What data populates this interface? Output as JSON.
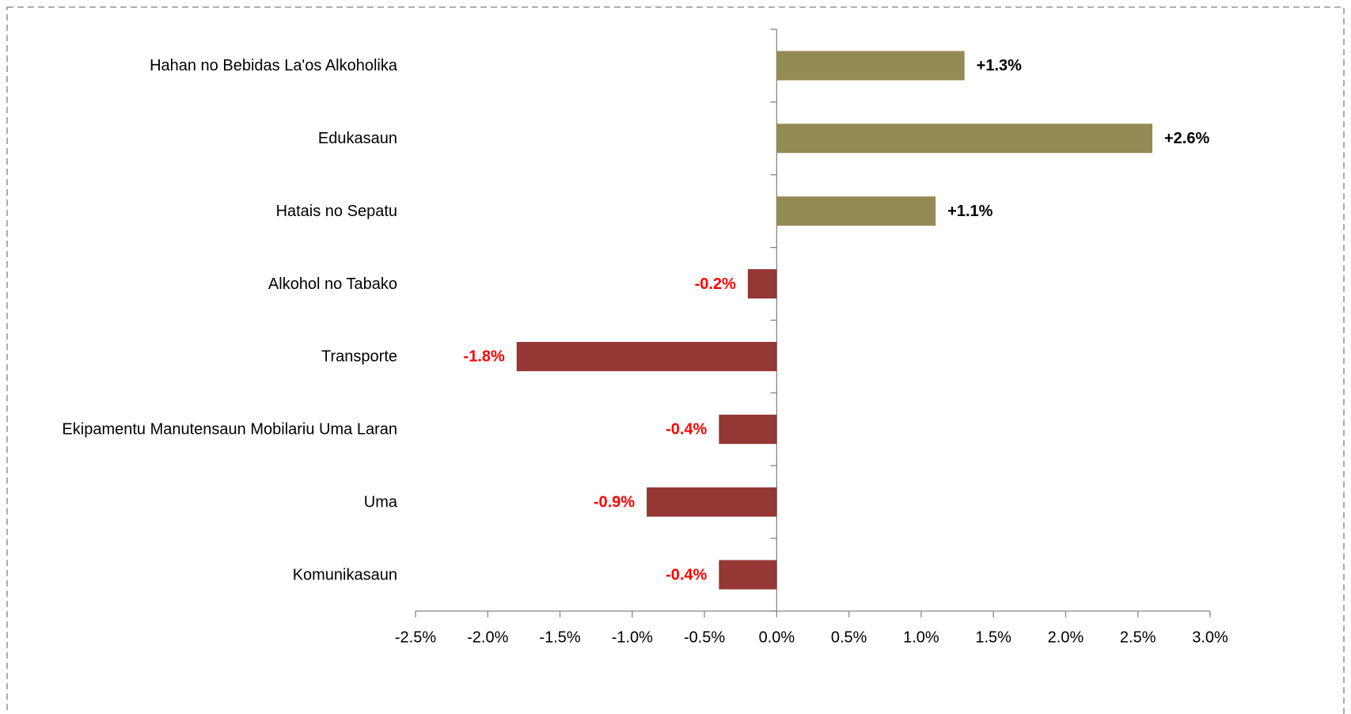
{
  "chart_data": {
    "type": "bar",
    "orientation": "horizontal",
    "categories": [
      "Hahan no Bebidas La'os Alkoholika",
      "Edukasaun",
      "Hatais no Sepatu",
      "Alkohol no Tabako",
      "Transporte",
      "Ekipamentu Manutensaun Mobilariu Uma Laran",
      "Uma",
      "Komunikasaun"
    ],
    "values": [
      1.3,
      2.6,
      1.1,
      -0.2,
      -1.8,
      -0.4,
      -0.9,
      -0.4
    ],
    "value_labels": [
      "+1.3%",
      "+2.6%",
      "+1.1%",
      "-0.2%",
      "-1.8%",
      "-0.4%",
      "-0.9%",
      "-0.4%"
    ],
    "colors": [
      "#948a54",
      "#948a54",
      "#948a54",
      "#953735",
      "#953735",
      "#953735",
      "#953735",
      "#953735"
    ],
    "value_label_colors": [
      "#000000",
      "#000000",
      "#000000",
      "#ff0000",
      "#ff0000",
      "#ff0000",
      "#ff0000",
      "#ff0000"
    ],
    "xlim": [
      -2.5,
      3.0
    ],
    "xticks": [
      {
        "value": -2.5,
        "label": "-2.5%"
      },
      {
        "value": -2.0,
        "label": "-2.0%"
      },
      {
        "value": -1.5,
        "label": "-1.5%"
      },
      {
        "value": -1.0,
        "label": "-1.0%"
      },
      {
        "value": -0.5,
        "label": "-0.5%"
      },
      {
        "value": 0.0,
        "label": "0.0%"
      },
      {
        "value": 0.5,
        "label": "0.5%"
      },
      {
        "value": 1.0,
        "label": "1.0%"
      },
      {
        "value": 1.5,
        "label": "1.5%"
      },
      {
        "value": 2.0,
        "label": "2.0%"
      },
      {
        "value": 2.5,
        "label": "2.5%"
      },
      {
        "value": 3.0,
        "label": "3.0%"
      }
    ],
    "grid": false
  }
}
